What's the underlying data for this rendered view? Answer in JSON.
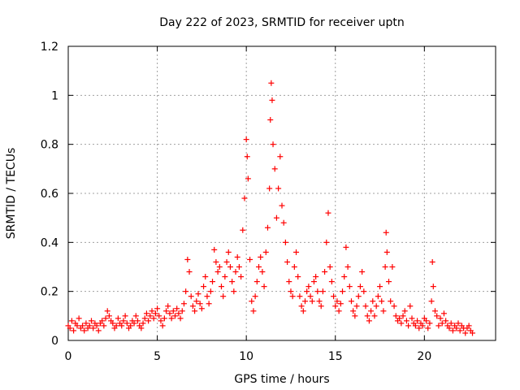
{
  "chart_data": {
    "type": "scatter",
    "title": "Day 222 of 2023, SRMTID for receiver uptn",
    "xlabel": "GPS time / hours",
    "ylabel": "SRMTID / TECUs",
    "xlim": [
      0,
      24
    ],
    "ylim": [
      0,
      1.2
    ],
    "xticks": [
      0,
      5,
      10,
      15,
      20
    ],
    "xtick_labels": [
      "0",
      "5",
      "10",
      "15",
      "20"
    ],
    "yticks": [
      0,
      0.2,
      0.4,
      0.6,
      0.8,
      1.0,
      1.2
    ],
    "ytick_labels": [
      "0",
      "0.2",
      "0.4",
      "0.6",
      "0.8",
      "1",
      "1.2"
    ],
    "grid": true,
    "marker": "+",
    "color": "#ff0000",
    "series": [
      {
        "name": "SRMTID",
        "points": [
          [
            0.0,
            0.06
          ],
          [
            0.1,
            0.05
          ],
          [
            0.2,
            0.08
          ],
          [
            0.3,
            0.04
          ],
          [
            0.4,
            0.07
          ],
          [
            0.5,
            0.06
          ],
          [
            0.6,
            0.09
          ],
          [
            0.7,
            0.05
          ],
          [
            0.8,
            0.06
          ],
          [
            0.9,
            0.04
          ],
          [
            1.0,
            0.07
          ],
          [
            1.1,
            0.05
          ],
          [
            1.2,
            0.06
          ],
          [
            1.3,
            0.08
          ],
          [
            1.4,
            0.05
          ],
          [
            1.5,
            0.07
          ],
          [
            1.6,
            0.06
          ],
          [
            1.7,
            0.04
          ],
          [
            1.8,
            0.07
          ],
          [
            1.9,
            0.08
          ],
          [
            2.0,
            0.06
          ],
          [
            2.1,
            0.09
          ],
          [
            2.2,
            0.12
          ],
          [
            2.3,
            0.1
          ],
          [
            2.4,
            0.08
          ],
          [
            2.5,
            0.07
          ],
          [
            2.6,
            0.05
          ],
          [
            2.7,
            0.06
          ],
          [
            2.8,
            0.09
          ],
          [
            2.9,
            0.07
          ],
          [
            3.0,
            0.06
          ],
          [
            3.1,
            0.08
          ],
          [
            3.2,
            0.1
          ],
          [
            3.3,
            0.07
          ],
          [
            3.4,
            0.05
          ],
          [
            3.5,
            0.06
          ],
          [
            3.6,
            0.08
          ],
          [
            3.7,
            0.07
          ],
          [
            3.8,
            0.1
          ],
          [
            3.9,
            0.08
          ],
          [
            4.0,
            0.06
          ],
          [
            4.1,
            0.05
          ],
          [
            4.2,
            0.07
          ],
          [
            4.3,
            0.09
          ],
          [
            4.4,
            0.11
          ],
          [
            4.5,
            0.08
          ],
          [
            4.6,
            0.1
          ],
          [
            4.7,
            0.12
          ],
          [
            4.8,
            0.09
          ],
          [
            4.9,
            0.11
          ],
          [
            5.0,
            0.13
          ],
          [
            5.1,
            0.1
          ],
          [
            5.2,
            0.08
          ],
          [
            5.3,
            0.06
          ],
          [
            5.4,
            0.09
          ],
          [
            5.5,
            0.12
          ],
          [
            5.6,
            0.14
          ],
          [
            5.7,
            0.11
          ],
          [
            5.8,
            0.09
          ],
          [
            5.9,
            0.12
          ],
          [
            6.0,
            0.1
          ],
          [
            6.1,
            0.13
          ],
          [
            6.2,
            0.11
          ],
          [
            6.3,
            0.09
          ],
          [
            6.4,
            0.12
          ],
          [
            6.5,
            0.15
          ],
          [
            6.6,
            0.2
          ],
          [
            6.7,
            0.33
          ],
          [
            6.8,
            0.28
          ],
          [
            6.9,
            0.18
          ],
          [
            7.0,
            0.14
          ],
          [
            7.1,
            0.12
          ],
          [
            7.2,
            0.16
          ],
          [
            7.3,
            0.19
          ],
          [
            7.4,
            0.15
          ],
          [
            7.5,
            0.13
          ],
          [
            7.6,
            0.22
          ],
          [
            7.7,
            0.26
          ],
          [
            7.8,
            0.18
          ],
          [
            7.9,
            0.15
          ],
          [
            8.0,
            0.2
          ],
          [
            8.1,
            0.24
          ],
          [
            8.2,
            0.37
          ],
          [
            8.3,
            0.32
          ],
          [
            8.4,
            0.28
          ],
          [
            8.5,
            0.3
          ],
          [
            8.6,
            0.22
          ],
          [
            8.7,
            0.18
          ],
          [
            8.8,
            0.26
          ],
          [
            8.9,
            0.32
          ],
          [
            9.0,
            0.36
          ],
          [
            9.1,
            0.3
          ],
          [
            9.2,
            0.24
          ],
          [
            9.3,
            0.2
          ],
          [
            9.4,
            0.28
          ],
          [
            9.5,
            0.34
          ],
          [
            9.6,
            0.3
          ],
          [
            9.7,
            0.26
          ],
          [
            9.8,
            0.45
          ],
          [
            9.9,
            0.58
          ],
          [
            10.0,
            0.82
          ],
          [
            10.05,
            0.75
          ],
          [
            10.1,
            0.66
          ],
          [
            10.2,
            0.33
          ],
          [
            10.3,
            0.16
          ],
          [
            10.4,
            0.12
          ],
          [
            10.5,
            0.18
          ],
          [
            10.6,
            0.24
          ],
          [
            10.7,
            0.3
          ],
          [
            10.8,
            0.34
          ],
          [
            10.9,
            0.28
          ],
          [
            11.0,
            0.22
          ],
          [
            11.1,
            0.36
          ],
          [
            11.2,
            0.46
          ],
          [
            11.3,
            0.62
          ],
          [
            11.35,
            0.9
          ],
          [
            11.4,
            1.05
          ],
          [
            11.45,
            0.98
          ],
          [
            11.5,
            0.8
          ],
          [
            11.6,
            0.7
          ],
          [
            11.7,
            0.5
          ],
          [
            11.8,
            0.62
          ],
          [
            11.9,
            0.75
          ],
          [
            12.0,
            0.55
          ],
          [
            12.1,
            0.48
          ],
          [
            12.2,
            0.4
          ],
          [
            12.3,
            0.32
          ],
          [
            12.4,
            0.24
          ],
          [
            12.5,
            0.2
          ],
          [
            12.6,
            0.18
          ],
          [
            12.7,
            0.3
          ],
          [
            12.8,
            0.36
          ],
          [
            12.9,
            0.26
          ],
          [
            13.0,
            0.18
          ],
          [
            13.1,
            0.14
          ],
          [
            13.2,
            0.12
          ],
          [
            13.3,
            0.16
          ],
          [
            13.4,
            0.2
          ],
          [
            13.5,
            0.22
          ],
          [
            13.6,
            0.18
          ],
          [
            13.7,
            0.16
          ],
          [
            13.8,
            0.24
          ],
          [
            13.9,
            0.26
          ],
          [
            14.0,
            0.2
          ],
          [
            14.1,
            0.16
          ],
          [
            14.2,
            0.14
          ],
          [
            14.3,
            0.2
          ],
          [
            14.4,
            0.28
          ],
          [
            14.5,
            0.4
          ],
          [
            14.6,
            0.52
          ],
          [
            14.7,
            0.3
          ],
          [
            14.8,
            0.24
          ],
          [
            14.9,
            0.18
          ],
          [
            15.0,
            0.14
          ],
          [
            15.1,
            0.16
          ],
          [
            15.2,
            0.12
          ],
          [
            15.3,
            0.15
          ],
          [
            15.4,
            0.2
          ],
          [
            15.5,
            0.26
          ],
          [
            15.6,
            0.38
          ],
          [
            15.7,
            0.3
          ],
          [
            15.8,
            0.22
          ],
          [
            15.9,
            0.16
          ],
          [
            16.0,
            0.12
          ],
          [
            16.1,
            0.1
          ],
          [
            16.2,
            0.14
          ],
          [
            16.3,
            0.18
          ],
          [
            16.4,
            0.22
          ],
          [
            16.5,
            0.28
          ],
          [
            16.6,
            0.2
          ],
          [
            16.7,
            0.14
          ],
          [
            16.8,
            0.1
          ],
          [
            16.9,
            0.08
          ],
          [
            17.0,
            0.12
          ],
          [
            17.1,
            0.16
          ],
          [
            17.2,
            0.1
          ],
          [
            17.3,
            0.14
          ],
          [
            17.4,
            0.18
          ],
          [
            17.5,
            0.22
          ],
          [
            17.6,
            0.16
          ],
          [
            17.7,
            0.12
          ],
          [
            17.8,
            0.3
          ],
          [
            17.85,
            0.44
          ],
          [
            17.9,
            0.36
          ],
          [
            18.0,
            0.24
          ],
          [
            18.1,
            0.16
          ],
          [
            18.2,
            0.3
          ],
          [
            18.3,
            0.14
          ],
          [
            18.4,
            0.1
          ],
          [
            18.5,
            0.08
          ],
          [
            18.6,
            0.09
          ],
          [
            18.7,
            0.07
          ],
          [
            18.8,
            0.1
          ],
          [
            18.9,
            0.12
          ],
          [
            19.0,
            0.08
          ],
          [
            19.1,
            0.06
          ],
          [
            19.2,
            0.14
          ],
          [
            19.3,
            0.09
          ],
          [
            19.4,
            0.07
          ],
          [
            19.5,
            0.06
          ],
          [
            19.6,
            0.08
          ],
          [
            19.7,
            0.05
          ],
          [
            19.8,
            0.07
          ],
          [
            19.9,
            0.06
          ],
          [
            20.0,
            0.09
          ],
          [
            20.1,
            0.08
          ],
          [
            20.2,
            0.05
          ],
          [
            20.3,
            0.07
          ],
          [
            20.4,
            0.16
          ],
          [
            20.45,
            0.32
          ],
          [
            20.5,
            0.22
          ],
          [
            20.6,
            0.12
          ],
          [
            20.7,
            0.1
          ],
          [
            20.8,
            0.06
          ],
          [
            20.9,
            0.09
          ],
          [
            21.0,
            0.07
          ],
          [
            21.1,
            0.11
          ],
          [
            21.2,
            0.08
          ],
          [
            21.3,
            0.06
          ],
          [
            21.4,
            0.05
          ],
          [
            21.5,
            0.07
          ],
          [
            21.6,
            0.04
          ],
          [
            21.7,
            0.06
          ],
          [
            21.8,
            0.05
          ],
          [
            21.9,
            0.07
          ],
          [
            22.0,
            0.04
          ],
          [
            22.1,
            0.06
          ],
          [
            22.2,
            0.05
          ],
          [
            22.3,
            0.03
          ],
          [
            22.4,
            0.05
          ],
          [
            22.5,
            0.06
          ],
          [
            22.6,
            0.04
          ],
          [
            22.7,
            0.03
          ]
        ]
      }
    ]
  }
}
